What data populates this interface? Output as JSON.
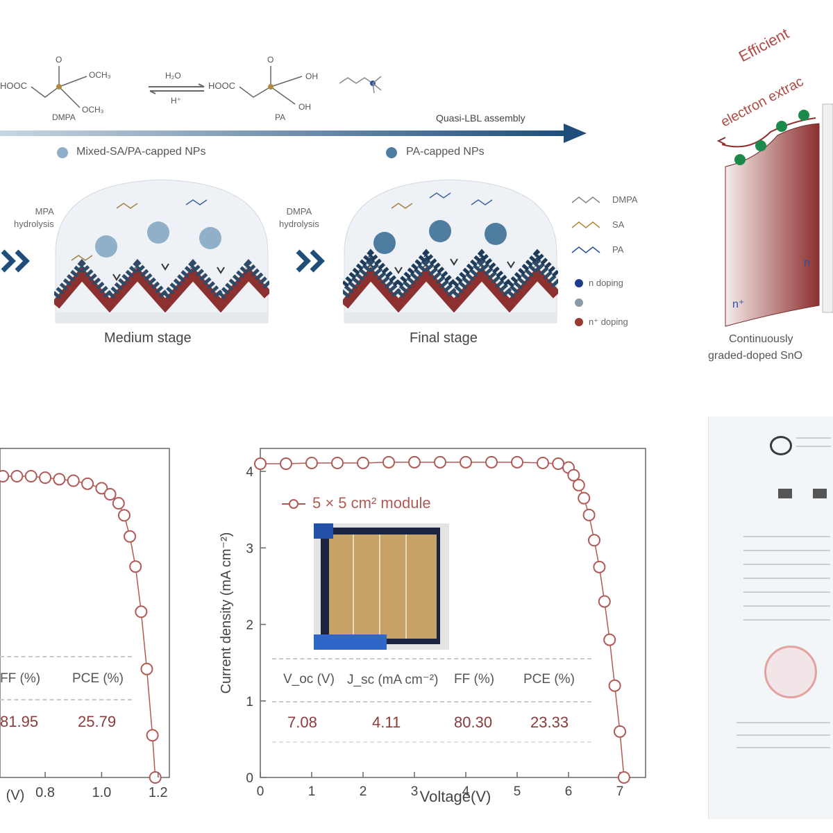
{
  "scheme": {
    "dmpa_label": "DMPA",
    "pa_label": "PA",
    "reagent_water": "H₂O",
    "reagent_acid": "H⁺",
    "arrow_label": "Quasi-LBL assembly",
    "np_mixed": "Mixed-SA/PA-capped NPs",
    "np_pa": "PA-capped NPs",
    "hydrolysis_left": "DMPA\nhydrolysis",
    "hydrolysis_right": "DMPA\nhydrolysis",
    "stage_medium": "Medium stage",
    "stage_final": "Final stage",
    "legend": {
      "dmpa": "DMPA",
      "sa": "SA",
      "pa": "PA",
      "n_doping": "n doping",
      "n_plus_doping": "n⁺ doping"
    }
  },
  "band_diagram": {
    "title_line1": "Efficient",
    "title_line2": "electron extrac",
    "n_plus": "n⁺",
    "n": "n",
    "caption_line1": "Continuously",
    "caption_line2": "graded-doped SnO"
  },
  "colors": {
    "curve": "#b05a56",
    "navy": "#1f4e7a",
    "band_red": "#9c3b3b",
    "electron": "#1b8a4a"
  },
  "chart_data": [
    {
      "type": "line",
      "title": "",
      "xlabel": "(V)",
      "ylabel": "",
      "xlim": [
        0.0,
        1.2
      ],
      "xticks": [
        "0.8",
        "1.0",
        "1.2"
      ],
      "series": [
        {
          "x": [
            0.5,
            0.55,
            0.6,
            0.65,
            0.7,
            0.75,
            0.8,
            0.85,
            0.9,
            0.95,
            1.0,
            1.03,
            1.06,
            1.08,
            1.1,
            1.12,
            1.14,
            1.16,
            1.18,
            1.19
          ],
          "y": [
            1.0,
            1.0,
            1.0,
            1.0,
            1.0,
            1.0,
            0.995,
            0.99,
            0.985,
            0.975,
            0.96,
            0.94,
            0.91,
            0.87,
            0.8,
            0.7,
            0.55,
            0.36,
            0.14,
            0.0
          ]
        }
      ],
      "table": {
        "headers": [
          "FF (%)",
          "PCE (%)"
        ],
        "values": [
          "81.95",
          "25.79"
        ]
      }
    },
    {
      "type": "line",
      "title": "",
      "xlabel": "Voltage(V)",
      "ylabel": "Current density (mA cm⁻²)",
      "xlim": [
        0,
        7.5
      ],
      "ylim": [
        0,
        4.3
      ],
      "xticks": [
        0,
        1,
        2,
        3,
        4,
        5,
        6,
        7
      ],
      "yticks": [
        0,
        1,
        2,
        3,
        4
      ],
      "series": [
        {
          "name": "5 × 5 cm² module",
          "x": [
            0.0,
            0.5,
            1.0,
            1.5,
            2.0,
            2.5,
            3.0,
            3.5,
            4.0,
            4.5,
            5.0,
            5.5,
            5.8,
            6.0,
            6.1,
            6.2,
            6.3,
            6.4,
            6.5,
            6.6,
            6.7,
            6.8,
            6.9,
            7.0,
            7.08
          ],
          "y": [
            4.1,
            4.1,
            4.11,
            4.11,
            4.11,
            4.12,
            4.12,
            4.12,
            4.12,
            4.12,
            4.12,
            4.11,
            4.1,
            4.05,
            3.95,
            3.82,
            3.65,
            3.43,
            3.1,
            2.75,
            2.3,
            1.8,
            1.2,
            0.6,
            0.0
          ]
        }
      ],
      "table": {
        "headers": [
          "V_oc (V)",
          "J_sc (mA cm⁻²)",
          "FF (%)",
          "PCE (%)"
        ],
        "values": [
          "7.08",
          "4.11",
          "80.30",
          "23.33"
        ]
      }
    }
  ]
}
